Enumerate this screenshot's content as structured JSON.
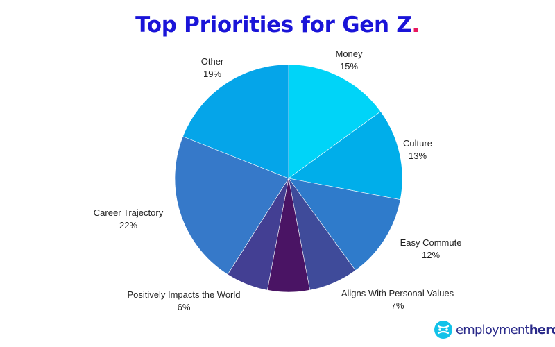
{
  "title_text": "Top Priorities for Gen Z",
  "title_punct": ".",
  "colors": {
    "title": "#1a14d8",
    "accent_dot": "#e8175d",
    "brand_blue": "#2a2a8a",
    "brand_cyan": "#12c2e9"
  },
  "chart_data": {
    "type": "pie",
    "title": "Top Priorities for Gen Z.",
    "start": "12 o'clock",
    "direction": "clockwise",
    "unit": "%",
    "slices": [
      {
        "label": "Money",
        "value": 15,
        "value_text": "15%",
        "color": "#00d4f8"
      },
      {
        "label": "Culture",
        "value": 13,
        "value_text": "13%",
        "color": "#00aeea"
      },
      {
        "label": "Easy Commute",
        "value": 12,
        "value_text": "12%",
        "color": "#2f7bcb"
      },
      {
        "label": "Aligns With Personal Values",
        "value": 7,
        "value_text": "7%",
        "color": "#3f4b9a"
      },
      {
        "label": "Positively Impacts the World",
        "value": 6,
        "value_text": "6%",
        "color": "#4a1464"
      },
      {
        "label": "Career Trajectory",
        "value": 22,
        "value_text": "22%",
        "color": "#3679c9"
      },
      {
        "label": "Other",
        "value": 19,
        "value_text": "19%",
        "color": "#05a5e9"
      }
    ],
    "extra_sector": {
      "value": 6,
      "color": "#433f93",
      "labeled": false
    }
  },
  "brand": {
    "part1": "employment",
    "part2": "hero",
    "suffix": ".",
    "icon": "employment-hero-logo-icon"
  }
}
